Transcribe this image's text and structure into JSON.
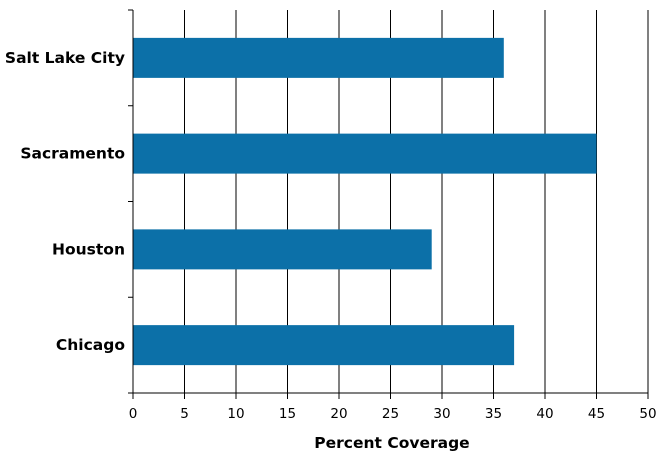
{
  "chart_data": {
    "type": "bar",
    "orientation": "horizontal",
    "categories": [
      "Salt Lake City",
      "Sacramento",
      "Houston",
      "Chicago"
    ],
    "values": [
      36,
      45,
      29,
      37
    ],
    "title": "",
    "xlabel": "Percent Coverage",
    "ylabel": "",
    "xlim": [
      0,
      50
    ],
    "xticks": [
      "0",
      "5",
      "10",
      "15",
      "20",
      "25",
      "30",
      "35",
      "40",
      "45",
      "50"
    ],
    "grid": "vertical",
    "legend": "none",
    "bar_color": "#0c70a8"
  }
}
